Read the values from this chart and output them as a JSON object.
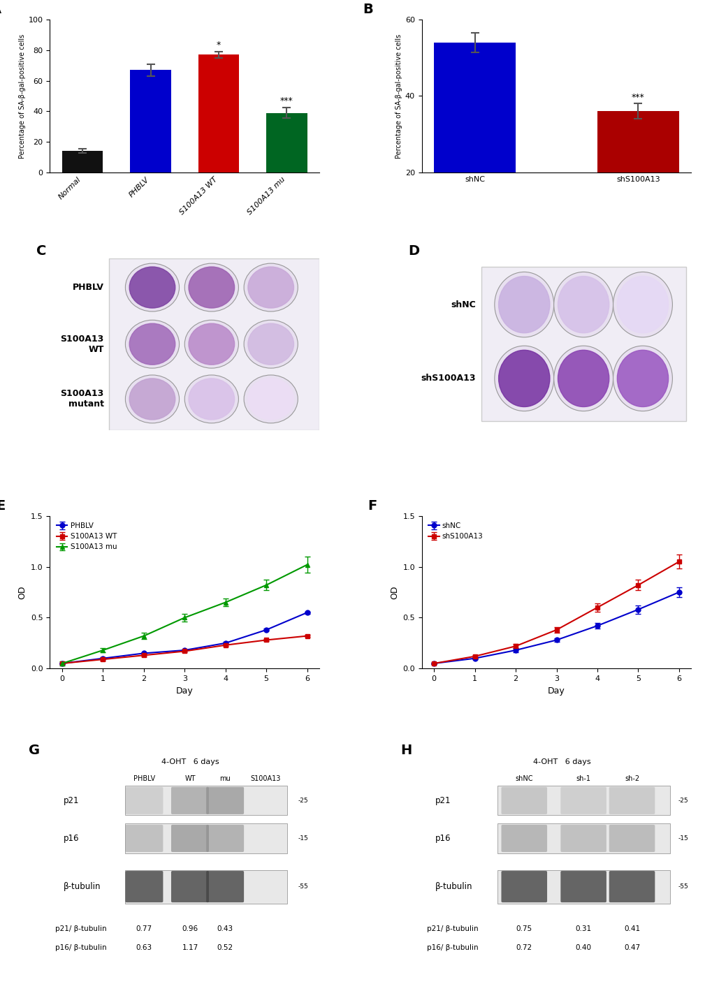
{
  "panel_A": {
    "categories": [
      "Normal",
      "PHBLV",
      "S100A13 WT",
      "S100A13 mu"
    ],
    "values": [
      14,
      67,
      77,
      39
    ],
    "errors": [
      1.5,
      4,
      2,
      3.5
    ],
    "colors": [
      "#111111",
      "#0000cc",
      "#cc0000",
      "#006622"
    ],
    "ylabel": "Percentage of SA-β-gal-positive cells",
    "ylim": [
      0,
      100
    ],
    "yticks": [
      0,
      20,
      40,
      60,
      80,
      100
    ],
    "significance": [
      "",
      "",
      "*",
      "***"
    ],
    "label": "A"
  },
  "panel_B": {
    "categories": [
      "shNC",
      "shS100A13"
    ],
    "values": [
      54,
      36
    ],
    "errors": [
      2.5,
      2
    ],
    "colors": [
      "#0000cc",
      "#aa0000"
    ],
    "ylabel": "Percentage of SA-β-gal-positive cells",
    "ylim": [
      20,
      60
    ],
    "yticks": [
      20,
      40,
      60
    ],
    "significance": [
      "",
      "***"
    ],
    "label": "B"
  },
  "panel_C_label": "C",
  "panel_C_row_labels": [
    "PHBLV",
    "S100A13\nWT",
    "S100A13\nmutant"
  ],
  "panel_D_label": "D",
  "panel_D_row_labels": [
    "shNC",
    "shS100A13"
  ],
  "panel_E": {
    "days": [
      0,
      1,
      2,
      3,
      4,
      5,
      6
    ],
    "series_order": [
      "PHBLV",
      "S100A13 WT",
      "S100A13 mu"
    ],
    "series": {
      "PHBLV": {
        "values": [
          0.05,
          0.1,
          0.15,
          0.18,
          0.25,
          0.38,
          0.55
        ],
        "color": "#0000cc",
        "marker": "o",
        "linestyle": "-"
      },
      "S100A13 WT": {
        "values": [
          0.05,
          0.09,
          0.13,
          0.17,
          0.23,
          0.28,
          0.32
        ],
        "color": "#cc0000",
        "marker": "s",
        "linestyle": "-"
      },
      "S100A13 mu": {
        "values": [
          0.05,
          0.18,
          0.32,
          0.5,
          0.65,
          0.82,
          1.02
        ],
        "color": "#009900",
        "marker": "^",
        "linestyle": "-"
      }
    },
    "xlabel": "Day",
    "ylabel": "OD",
    "ylim": [
      0,
      1.5
    ],
    "yticks": [
      0.0,
      0.5,
      1.0,
      1.5
    ],
    "xticks": [
      0,
      1,
      2,
      3,
      4,
      5,
      6
    ],
    "label": "E"
  },
  "panel_F": {
    "days": [
      0,
      1,
      2,
      3,
      4,
      5,
      6
    ],
    "series_order": [
      "shNC",
      "shS100A13"
    ],
    "series": {
      "shNC": {
        "values": [
          0.05,
          0.1,
          0.18,
          0.28,
          0.42,
          0.58,
          0.75
        ],
        "color": "#0000cc",
        "marker": "o",
        "linestyle": "-"
      },
      "shS100A13": {
        "values": [
          0.05,
          0.12,
          0.22,
          0.38,
          0.6,
          0.82,
          1.05
        ],
        "color": "#cc0000",
        "marker": "s",
        "linestyle": "-"
      }
    },
    "xlabel": "Day",
    "ylabel": "OD",
    "ylim": [
      0,
      1.5
    ],
    "yticks": [
      0.0,
      0.5,
      1.0,
      1.5
    ],
    "xticks": [
      0,
      1,
      2,
      3,
      4,
      5,
      6
    ],
    "label": "F"
  },
  "panel_G": {
    "label": "G",
    "title": "4-OHT   6 days",
    "col_labels": [
      "PHBLV",
      "WT",
      "mu",
      "S100A13"
    ],
    "row_labels": [
      "p21",
      "p16",
      "β-tubulin"
    ],
    "row_markers": [
      "-25",
      "-15",
      "-15",
      "-55"
    ],
    "ratio_labels": [
      "p21/ β-tubulin",
      "p16/ β-tubulin"
    ],
    "ratios": {
      "p21": [
        0.77,
        0.96,
        0.43
      ],
      "p16": [
        0.63,
        1.17,
        0.52
      ]
    }
  },
  "panel_H": {
    "label": "H",
    "title": "4-OHT   6 days",
    "col_labels": [
      "shNC",
      "sh-1",
      "sh-2"
    ],
    "row_labels": [
      "p21",
      "p16",
      "β-tubulin"
    ],
    "row_markers": [
      "-25",
      "-15",
      "-15",
      "-55"
    ],
    "ratio_labels": [
      "p21/ β-tubulin",
      "p16/ β-tubulin"
    ],
    "ratios": {
      "p21": [
        0.75,
        0.31,
        0.41
      ],
      "p16": [
        0.72,
        0.4,
        0.47
      ]
    }
  },
  "background_color": "#ffffff",
  "label_fontsize": 14,
  "axis_fontsize": 8,
  "tick_fontsize": 8
}
